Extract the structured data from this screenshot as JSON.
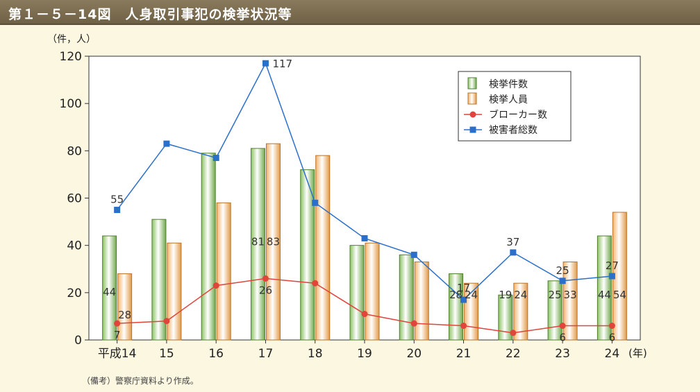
{
  "title": "第１－５－14図　人身取引事犯の検挙状況等",
  "unit_label": "（件，人）",
  "year_suffix": "(年)",
  "note": "（備考）警察庁資料より作成。",
  "chart_data": {
    "type": "bar",
    "categories": [
      "平成14",
      "15",
      "16",
      "17",
      "18",
      "19",
      "20",
      "21",
      "22",
      "23",
      "24"
    ],
    "ylim": [
      0,
      120
    ],
    "yticks": [
      0,
      20,
      40,
      60,
      80,
      100,
      120
    ],
    "grid": false,
    "legend_position": "top-right",
    "series": [
      {
        "name": "検挙件数",
        "kind": "bar",
        "color": "#8cc265",
        "values": [
          44,
          51,
          79,
          81,
          72,
          40,
          36,
          28,
          19,
          25,
          44
        ],
        "labels": [
          "44",
          "",
          "",
          "81",
          "",
          "",
          "",
          "28",
          "19",
          "25",
          "44"
        ]
      },
      {
        "name": "検挙人員",
        "kind": "bar",
        "color": "#f2b36b",
        "values": [
          28,
          41,
          58,
          83,
          78,
          41,
          33,
          24,
          24,
          33,
          54
        ],
        "labels": [
          "28",
          "",
          "",
          "83",
          "",
          "",
          "",
          "24",
          "24",
          "33",
          "54"
        ]
      },
      {
        "name": "ブローカー数",
        "kind": "line",
        "color": "#e0443a",
        "values": [
          7,
          8,
          23,
          26,
          24,
          11,
          7,
          6,
          3,
          6,
          6
        ],
        "labels": [
          "7",
          "",
          "",
          "26",
          "",
          "",
          "",
          "",
          "",
          "6",
          "6"
        ]
      },
      {
        "name": "被害者総数",
        "kind": "line",
        "color": "#2a6fc9",
        "values": [
          55,
          83,
          77,
          117,
          58,
          43,
          36,
          17,
          37,
          25,
          27
        ],
        "labels": [
          "55",
          "",
          "",
          "117",
          "",
          "",
          "",
          "17",
          "37",
          "25",
          "27"
        ]
      }
    ]
  }
}
